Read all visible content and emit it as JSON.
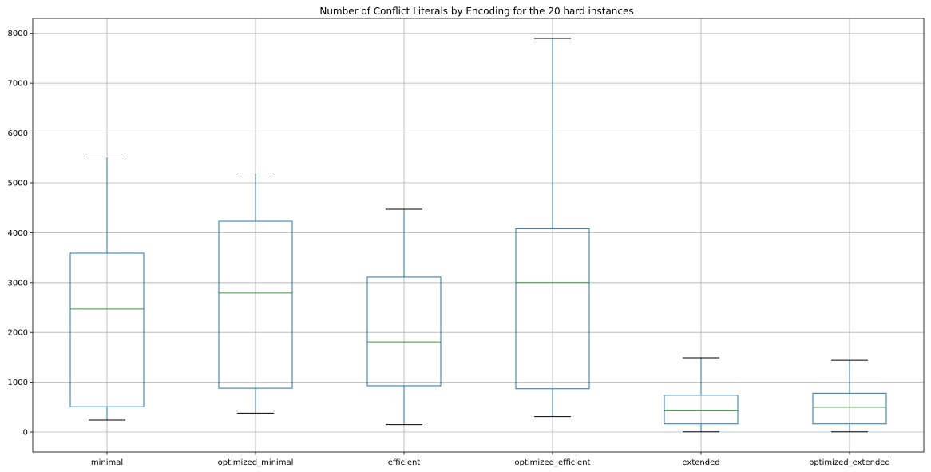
{
  "chart_data": {
    "type": "box",
    "title": "Number of Conflict Literals by Encoding for the 20 hard instances",
    "xlabel": "",
    "ylabel": "",
    "ylim": [
      -400,
      8300
    ],
    "yticks": [
      0,
      1000,
      2000,
      3000,
      4000,
      5000,
      6000,
      7000,
      8000
    ],
    "grid": true,
    "colors": {
      "box": "#1f77b4",
      "median": "#2ca02c",
      "whisker_cap": "#000000"
    },
    "categories": [
      "minimal",
      "optimized_minimal",
      "efficient",
      "optimized_efficient",
      "extended",
      "optimized_extended"
    ],
    "boxes": [
      {
        "name": "minimal",
        "whislo": 240,
        "q1": 510,
        "med": 2470,
        "q3": 3590,
        "whishi": 5520
      },
      {
        "name": "optimized_minimal",
        "whislo": 380,
        "q1": 880,
        "med": 2790,
        "q3": 4230,
        "whishi": 5200
      },
      {
        "name": "efficient",
        "whislo": 150,
        "q1": 930,
        "med": 1810,
        "q3": 3110,
        "whishi": 4470
      },
      {
        "name": "optimized_efficient",
        "whislo": 310,
        "q1": 870,
        "med": 3000,
        "q3": 4080,
        "whishi": 7900
      },
      {
        "name": "extended",
        "whislo": 5,
        "q1": 165,
        "med": 440,
        "q3": 740,
        "whishi": 1490
      },
      {
        "name": "optimized_extended",
        "whislo": 5,
        "q1": 165,
        "med": 500,
        "q3": 780,
        "whishi": 1440
      }
    ]
  }
}
